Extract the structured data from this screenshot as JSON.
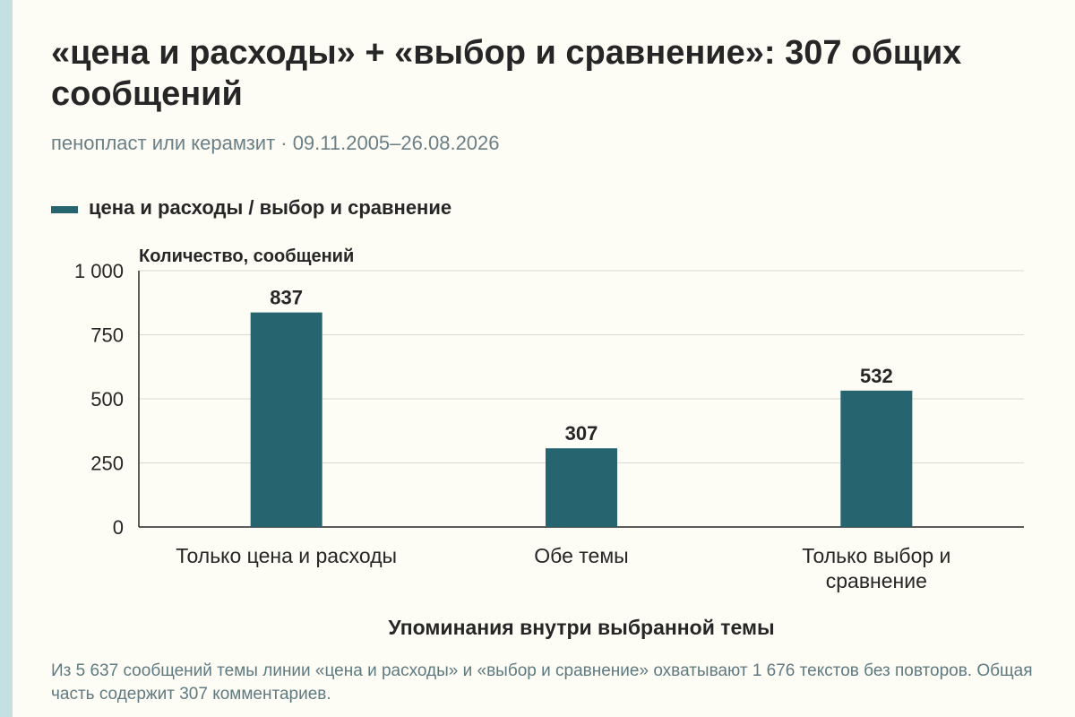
{
  "title": "«цена и расходы» + «выбор и сравнение»: 307 общих сообщений",
  "subtitle": "пенопласт или керамзит · 09.11.2005–26.08.2026",
  "legend": {
    "label": "цена и расходы / выбор и сравнение",
    "color": "#26646f"
  },
  "footnote": "Из 5 637 сообщений темы линии «цена и расходы» и «выбор и сравнение» охватывают 1 676 текстов без повторов. Общая часть содержит 307 комментариев.",
  "chart_data": {
    "type": "bar",
    "ylabel": "Количество, сообщений",
    "xlabel": "Упоминания внутри выбранной темы",
    "ylim": [
      0,
      1000
    ],
    "yticks": [
      0,
      250,
      500,
      750,
      1000
    ],
    "ytick_labels": [
      "0",
      "250",
      "500",
      "750",
      "1 000"
    ],
    "categories": [
      [
        "Только цена и расходы"
      ],
      [
        "Обе темы"
      ],
      [
        "Только выбор и",
        "сравнение"
      ]
    ],
    "values": [
      837,
      307,
      532
    ],
    "value_labels": [
      "837",
      "307",
      "532"
    ],
    "bar_color": "#26646f",
    "grid": true,
    "legend_position": "top-left"
  }
}
